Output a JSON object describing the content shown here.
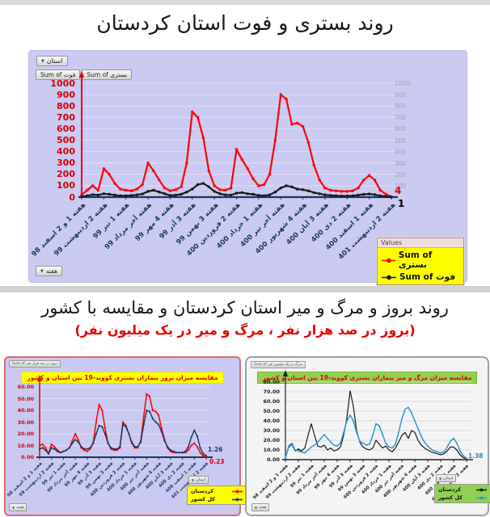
{
  "titles": {
    "main": "روند بستری و فوت استان کردستان",
    "secondary": "روند بروز و مرگ و میر استان کردستان و مقایسه با کشور",
    "subtitle": "(بروز در صد هزار نفر ، مرگ و میر در یک میلیون نفر)"
  },
  "week_labels": [
    "هفته 1 و 2 اسفند 98",
    "هفته 2 اردیبهشت 99",
    "هفته 1 تیر 99",
    "هفته آخر مرداد 99",
    "هفته 4 مهر 99",
    "هفته 3 آذر 99",
    "هفته 3 بهمن 99",
    "هفته 2 فروردین 400",
    "هفته 1 خرداد 400",
    "هفته آخر تیر 400",
    "هفته 4 شهریور 400",
    "هفته 3 آبان 400",
    "هفته 2 دی 400",
    "هفته 1 اسفند 400",
    "هفته 2 اردیبهشت 401"
  ],
  "main_chart": {
    "filter_button": "استان",
    "week_button": "هفته",
    "value_buttons": [
      "Sum of فوت",
      "Sum of بستری"
    ],
    "legend_title": "Values",
    "end_values": [
      "4",
      "1"
    ]
  },
  "left_chart": {
    "mini_button": "Sum of بروز در صد هزار نفر",
    "filter_button": "استان",
    "week_button": "هفته",
    "end_values": [
      "1.26",
      "0.23"
    ]
  },
  "right_chart": {
    "mini_button": "Sum of مرگ در یک میلیون نفر",
    "filter_button": "استان",
    "week_button": "هفته",
    "end_values": [
      "1.38"
    ]
  },
  "chart_data": [
    {
      "type": "line",
      "title": "روند بستری و فوت استان کردستان",
      "xlabel": "هفته",
      "ylim": [
        0,
        1000
      ],
      "yticks": [
        "0",
        "100",
        "200",
        "300",
        "400",
        "500",
        "600",
        "700",
        "800",
        "900",
        "1000"
      ],
      "legend_position": "bottom-right",
      "grid": true,
      "series": [
        {
          "name": "Sum of بستری",
          "color": "#ff0000",
          "dots": true,
          "values": [
            20,
            60,
            100,
            60,
            250,
            200,
            120,
            70,
            60,
            55,
            70,
            110,
            300,
            230,
            150,
            80,
            55,
            65,
            90,
            300,
            750,
            700,
            520,
            230,
            100,
            65,
            60,
            80,
            420,
            330,
            250,
            160,
            100,
            110,
            200,
            500,
            900,
            860,
            640,
            650,
            620,
            480,
            280,
            150,
            80,
            60,
            55,
            50,
            50,
            55,
            80,
            150,
            190,
            150,
            60,
            25,
            4
          ]
        },
        {
          "name": "Sum of فوت",
          "color": "#1a1a1a",
          "dots": true,
          "values": [
            5,
            12,
            22,
            18,
            30,
            25,
            18,
            12,
            12,
            15,
            20,
            28,
            50,
            60,
            45,
            30,
            15,
            18,
            25,
            45,
            70,
            110,
            120,
            90,
            50,
            30,
            20,
            18,
            35,
            40,
            30,
            25,
            15,
            12,
            20,
            45,
            80,
            100,
            90,
            70,
            65,
            55,
            40,
            30,
            20,
            15,
            12,
            10,
            10,
            12,
            18,
            24,
            28,
            22,
            12,
            6,
            1
          ]
        }
      ]
    },
    {
      "type": "line",
      "title": "مقایسه میزان بروز بیماران بستری کووید-19 بین استان و کشور",
      "xlabel": "هفته",
      "ylim": [
        0,
        60
      ],
      "yticks": [
        "0.00",
        "10.00",
        "20.00",
        "30.00",
        "40.00",
        "50.00",
        "60.00"
      ],
      "legend_position": "bottom-right",
      "grid": true,
      "series": [
        {
          "name": "کردستان",
          "color": "#ff0000",
          "dots": true,
          "values": [
            10,
            11,
            8,
            3,
            11,
            9,
            6,
            4,
            5,
            6,
            8,
            14,
            20,
            15,
            8,
            6,
            5,
            7,
            12,
            30,
            45,
            40,
            25,
            12,
            7,
            6,
            6,
            8,
            30,
            27,
            20,
            12,
            8,
            8,
            14,
            35,
            54,
            52,
            40,
            39,
            36,
            25,
            15,
            8,
            5,
            4,
            4,
            4,
            4,
            4,
            6,
            10,
            12,
            9,
            4,
            1,
            0.23
          ]
        },
        {
          "name": "کل کشور",
          "color": "#17375e",
          "dots": true,
          "values": [
            7,
            8,
            6,
            3,
            8,
            7,
            5,
            4,
            5,
            6,
            8,
            12,
            15,
            13,
            9,
            7,
            7,
            8,
            12,
            20,
            27,
            26,
            20,
            12,
            8,
            7,
            7,
            9,
            28,
            26,
            20,
            13,
            9,
            9,
            13,
            28,
            40,
            39,
            33,
            30,
            28,
            22,
            14,
            9,
            6,
            5,
            4,
            4,
            4,
            5,
            9,
            17,
            23,
            18,
            8,
            3,
            1.26
          ]
        }
      ]
    },
    {
      "type": "line",
      "title": "مقایسه میزان مرگ و میر بیماران بستری کووید-19 بین استان و کشور",
      "xlabel": "هفته",
      "ylim": [
        0,
        80
      ],
      "yticks": [
        "0.00",
        "10.00",
        "20.00",
        "30.00",
        "40.00",
        "50.00",
        "60.00",
        "70.00",
        "80.00"
      ],
      "legend_position": "bottom-right",
      "grid": true,
      "series": [
        {
          "name": "کردستان",
          "color": "#1a1a1a",
          "dots": false,
          "values": [
            2,
            13,
            16,
            9,
            11,
            9,
            12,
            25,
            37,
            25,
            14,
            13,
            15,
            10,
            12,
            9,
            10,
            13,
            25,
            43,
            71,
            55,
            30,
            18,
            13,
            11,
            10,
            12,
            20,
            16,
            12,
            14,
            10,
            8,
            12,
            18,
            25,
            28,
            22,
            30,
            28,
            20,
            15,
            12,
            10,
            8,
            7,
            6,
            5,
            6,
            9,
            13,
            13,
            10,
            5,
            2,
            1
          ]
        },
        {
          "name": "کل کشور",
          "color": "#2e9ad0",
          "dots": true,
          "values": [
            2,
            14,
            17,
            10,
            9,
            8,
            7,
            10,
            13,
            15,
            18,
            22,
            26,
            22,
            18,
            15,
            14,
            17,
            28,
            40,
            46,
            40,
            28,
            19,
            17,
            15,
            16,
            25,
            37,
            35,
            26,
            17,
            13,
            12,
            16,
            28,
            42,
            52,
            54,
            48,
            40,
            32,
            24,
            18,
            14,
            11,
            9,
            8,
            7,
            8,
            13,
            19,
            22,
            17,
            9,
            4,
            1.38
          ]
        }
      ]
    }
  ]
}
